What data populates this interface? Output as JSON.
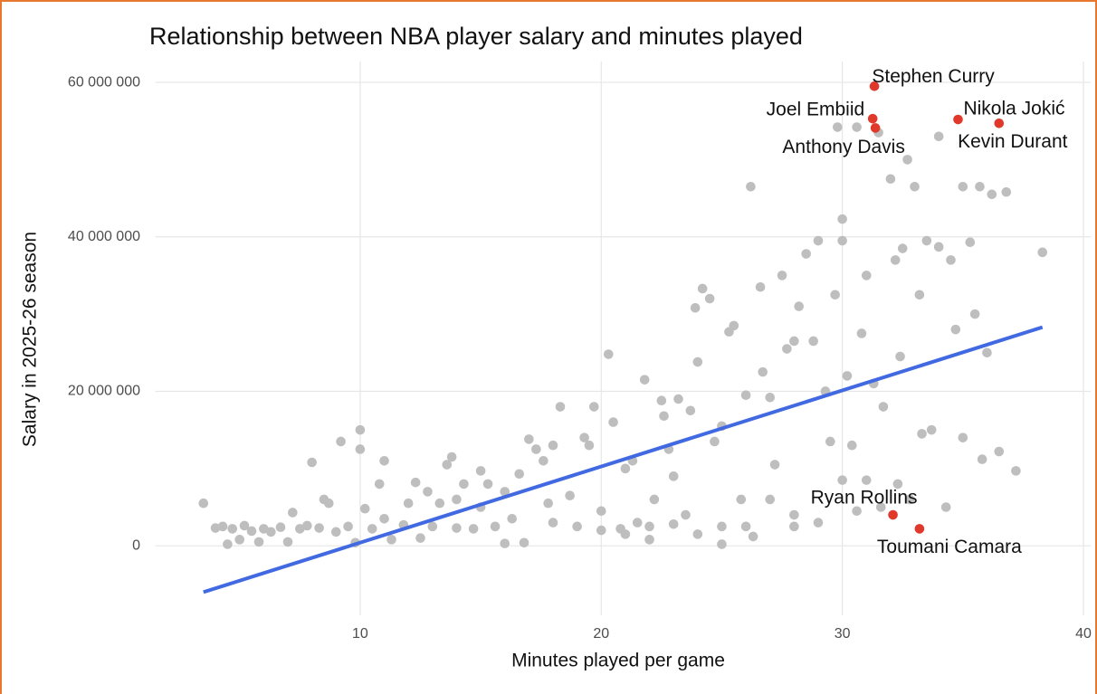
{
  "chart_data": {
    "type": "scatter",
    "title": "Relationship between NBA player salary and minutes played",
    "x_label": "Minutes played per game",
    "y_label": "Salary in 2025-26 season",
    "xlim": [
      1.5,
      40.3
    ],
    "xticks": [
      10,
      20,
      30,
      40
    ],
    "ylim": [
      -9000000,
      62700000
    ],
    "yticks": [
      0,
      {
        "value": 20000000,
        "label": "20 000 000"
      },
      {
        "value": 40000000,
        "label": "40 000 000"
      },
      {
        "value": 60000000,
        "label": "60 000 000"
      }
    ],
    "grid": true,
    "points": {
      "color": "#bebebe",
      "x": [
        3.5,
        4,
        4.3,
        4.5,
        4.7,
        5,
        5.2,
        5.5,
        5.8,
        6,
        6.3,
        6.7,
        7,
        7.2,
        7.5,
        7.8,
        8,
        8.3,
        8.5,
        8.7,
        9,
        9.2,
        9.5,
        9.8,
        10,
        10,
        10.2,
        10.5,
        10.8,
        11,
        11,
        11.3,
        11.8,
        12,
        12.3,
        12.5,
        12.8,
        13,
        13.3,
        13.6,
        13.8,
        14,
        14,
        14.3,
        14.7,
        15,
        15,
        15.3,
        15.6,
        16,
        16,
        16.3,
        16.6,
        16.8,
        17,
        17.3,
        17.6,
        17.8,
        18,
        18,
        18.3,
        18.7,
        19,
        19.3,
        19.5,
        19.7,
        20,
        20.3,
        20.5,
        20.8,
        21,
        21.3,
        21.5,
        21.8,
        22,
        22.2,
        22.5,
        22.6,
        22.8,
        23,
        23.2,
        23.5,
        23.7,
        23.9,
        24,
        24.2,
        24.5,
        24.7,
        25,
        25,
        25.5,
        25.3,
        25.8,
        26,
        26.2,
        26.3,
        26.6,
        26.7,
        27,
        27.2,
        27.5,
        27.7,
        28,
        28,
        28.2,
        28.5,
        28.8,
        29,
        29.3,
        29.5,
        29.7,
        29.8,
        30,
        30,
        30.2,
        30.4,
        30.6,
        30.8,
        31,
        31,
        31.3,
        31.5,
        31.7,
        32,
        32.2,
        32.4,
        32.5,
        32.7,
        33,
        33.2,
        33.5,
        33.7,
        34,
        34,
        34.3,
        34.5,
        34.7,
        35,
        35,
        35.3,
        35.5,
        35.7,
        35.8,
        36,
        36.2,
        36.5,
        36.8,
        37.2,
        38.3,
        20,
        21,
        22,
        23,
        24,
        25,
        26,
        27,
        28,
        29,
        30,
        30.6,
        31.6,
        32.3,
        32.8,
        33.3
      ],
      "values": [
        5500000,
        2300000,
        2500000,
        200000,
        2200000,
        800000,
        2600000,
        1900000,
        500000,
        2200000,
        1800000,
        2400000,
        500000,
        4300000,
        2200000,
        2600000,
        10800000,
        2300000,
        6000000,
        5500000,
        1800000,
        13500000,
        2500000,
        400000,
        15000000,
        12500000,
        4800000,
        2200000,
        8000000,
        11000000,
        3500000,
        800000,
        2700000,
        5500000,
        8200000,
        1000000,
        7000000,
        2500000,
        5500000,
        10500000,
        11500000,
        6000000,
        2300000,
        8000000,
        2200000,
        9700000,
        5000000,
        8000000,
        2500000,
        7000000,
        300000,
        3500000,
        9300000,
        400000,
        13800000,
        12500000,
        11000000,
        5500000,
        3000000,
        13000000,
        18000000,
        6500000,
        2500000,
        14000000,
        13000000,
        18000000,
        4500000,
        24800000,
        16000000,
        2200000,
        10000000,
        11000000,
        3000000,
        21500000,
        800000,
        6000000,
        18800000,
        16800000,
        12500000,
        9000000,
        19000000,
        4000000,
        17500000,
        30800000,
        23800000,
        33300000,
        32000000,
        13500000,
        15500000,
        200000,
        28500000,
        27700000,
        6000000,
        19500000,
        46500000,
        1200000,
        33500000,
        22500000,
        19200000,
        10500000,
        35000000,
        25500000,
        26500000,
        2500000,
        31000000,
        37800000,
        26500000,
        39500000,
        20000000,
        13500000,
        32500000,
        54200000,
        42300000,
        39500000,
        22000000,
        13000000,
        54200000,
        27500000,
        35000000,
        8500000,
        21000000,
        53500000,
        18000000,
        47500000,
        37000000,
        24500000,
        38500000,
        50000000,
        46500000,
        32500000,
        39500000,
        15000000,
        38700000,
        53000000,
        5000000,
        37000000,
        28000000,
        46500000,
        14000000,
        39300000,
        30000000,
        46500000,
        11200000,
        25000000,
        45500000,
        12200000,
        45800000,
        9700000,
        38000000,
        2000000,
        1500000,
        2500000,
        2800000,
        1500000,
        2500000,
        2500000,
        6000000,
        4000000,
        3000000,
        8500000,
        4500000,
        5000000,
        8000000,
        6000000,
        14500000
      ]
    },
    "highlight": {
      "color": "#e0392b",
      "labels": [
        "Stephen Curry",
        "Joel Embiid",
        "Anthony Davis",
        "Nikola Jokić",
        "Kevin Durant",
        "Ryan Rollins",
        "Toumani Camara"
      ],
      "x": [
        31.33,
        31.26,
        31.37,
        34.8,
        36.5,
        32.1,
        33.2
      ],
      "values": [
        59500000,
        55300000,
        54100000,
        55200000,
        54700000,
        4000000,
        2200000
      ]
    },
    "trend": {
      "color": "#4169e1",
      "x": [
        3.5,
        38.3
      ],
      "values": [
        -6000000,
        28300000
      ]
    }
  }
}
